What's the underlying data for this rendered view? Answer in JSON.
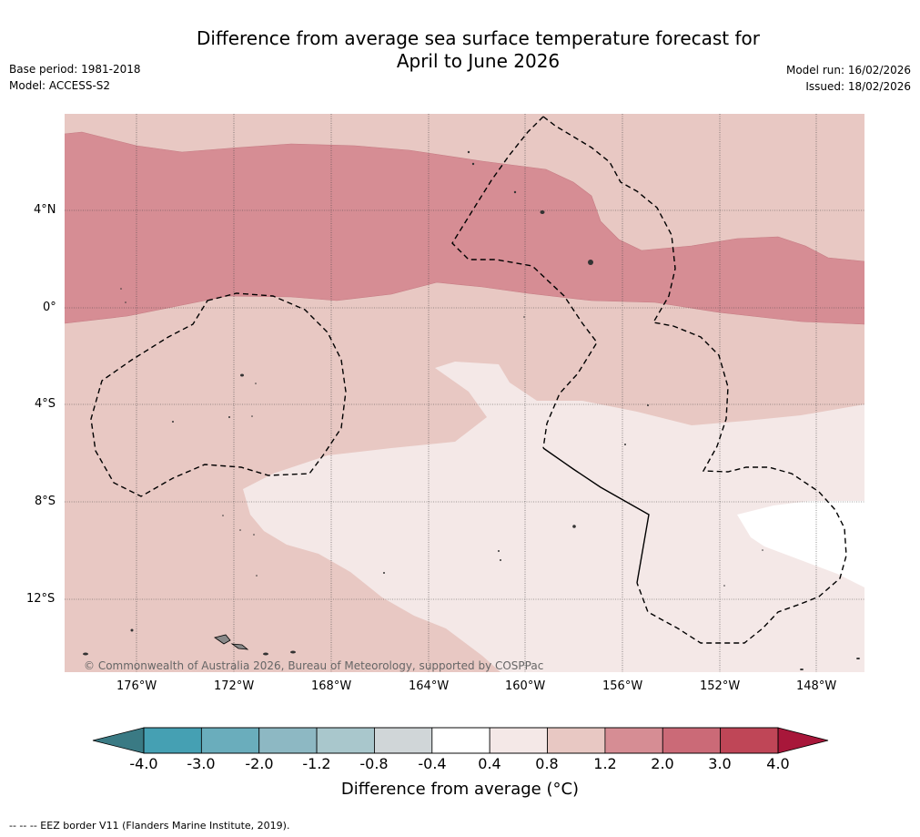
{
  "title_line1": "Difference from average sea surface temperature forecast for",
  "title_line2": "April to June 2026",
  "base_period": "Base period: 1981-2018",
  "model": "Model: ACCESS-S2",
  "model_run": "Model run: 16/02/2026",
  "issued": "Issued: 18/02/2026",
  "copyright": "© Commonwealth of Australia 2026, Bureau of Meteorology, supported by COSPPac",
  "lat_labels": [
    "4°N",
    "0°",
    "4°S",
    "8°S",
    "12°S"
  ],
  "lon_labels": [
    "176°W",
    "172°W",
    "168°W",
    "164°W",
    "160°W",
    "156°W",
    "152°W",
    "148°W"
  ],
  "colorbar": {
    "title": "Difference from average (°C)",
    "ticks": [
      "-4.0",
      "-3.0",
      "-2.0",
      "-1.2",
      "-0.8",
      "-0.4",
      "0.4",
      "0.8",
      "1.2",
      "2.0",
      "3.0",
      "4.0"
    ],
    "colors": [
      "#45a0b3",
      "#6aadbc",
      "#8db8c3",
      "#a9c7cc",
      "#d0d6d8",
      "#ffffff",
      "#f4e8e7",
      "#e8c8c3",
      "#d68d94",
      "#cb6a77",
      "#bf4657"
    ],
    "under_color": "#3a7a84",
    "over_color": "#a8173a"
  },
  "footer": "--  --  -- EEZ border V11 (Flanders Marine Institute, 2019).",
  "map_colors": {
    "band_0_4_0_8": "#f4e8e7",
    "band_0_8_1_2": "#e8c8c3",
    "band_1_2_2_0": "#d68d94",
    "band_neutral": "#ffffff"
  }
}
